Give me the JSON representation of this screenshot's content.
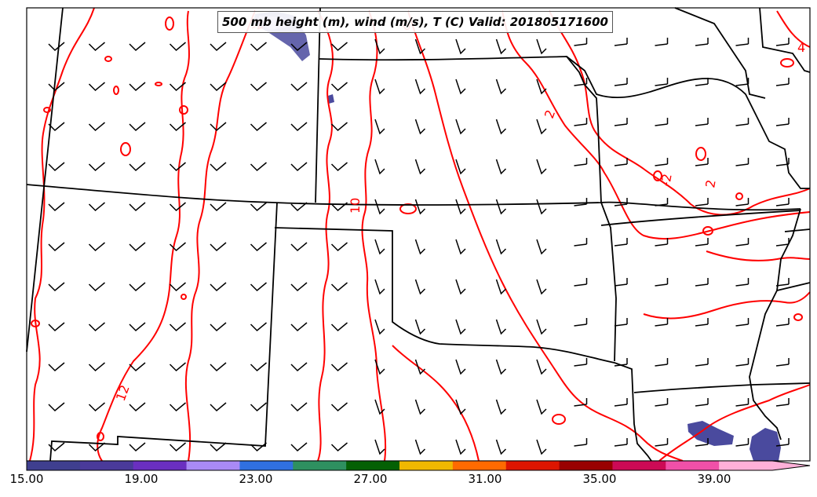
{
  "title": "500 mb height (m), wind (m/s), T (C) Valid: 201805171600",
  "contour_labels": [
    "0",
    "4",
    "2",
    "-2",
    "10",
    "2",
    "-2",
    "12"
  ],
  "colorbar": {
    "ticks": [
      "15.00",
      "19.00",
      "23.00",
      "27.00",
      "31.00",
      "35.00",
      "39.00"
    ],
    "min": 15,
    "max": 43,
    "bins": [
      {
        "from": 15,
        "color": "#3f3f8f"
      },
      {
        "from": 17,
        "color": "#4a3a9a"
      },
      {
        "from": 19,
        "color": "#6a2fc0"
      },
      {
        "from": 21,
        "color": "#a98af5"
      },
      {
        "from": 23,
        "color": "#3070e0"
      },
      {
        "from": 25,
        "color": "#2e9060"
      },
      {
        "from": 27,
        "color": "#046004"
      },
      {
        "from": 29,
        "color": "#f0b800"
      },
      {
        "from": 31,
        "color": "#ff6a00"
      },
      {
        "from": 33,
        "color": "#dd1500"
      },
      {
        "from": 35,
        "color": "#990000"
      },
      {
        "from": 37,
        "color": "#cc0a55"
      },
      {
        "from": 39,
        "color": "#f050a8"
      },
      {
        "from": 41,
        "color": "#ffb0d8"
      }
    ]
  },
  "colors": {
    "temperature_contour": "#ff0000",
    "state_border": "#000000",
    "wind_barb": "#000000",
    "wind_fill": "#4a4a9e"
  }
}
